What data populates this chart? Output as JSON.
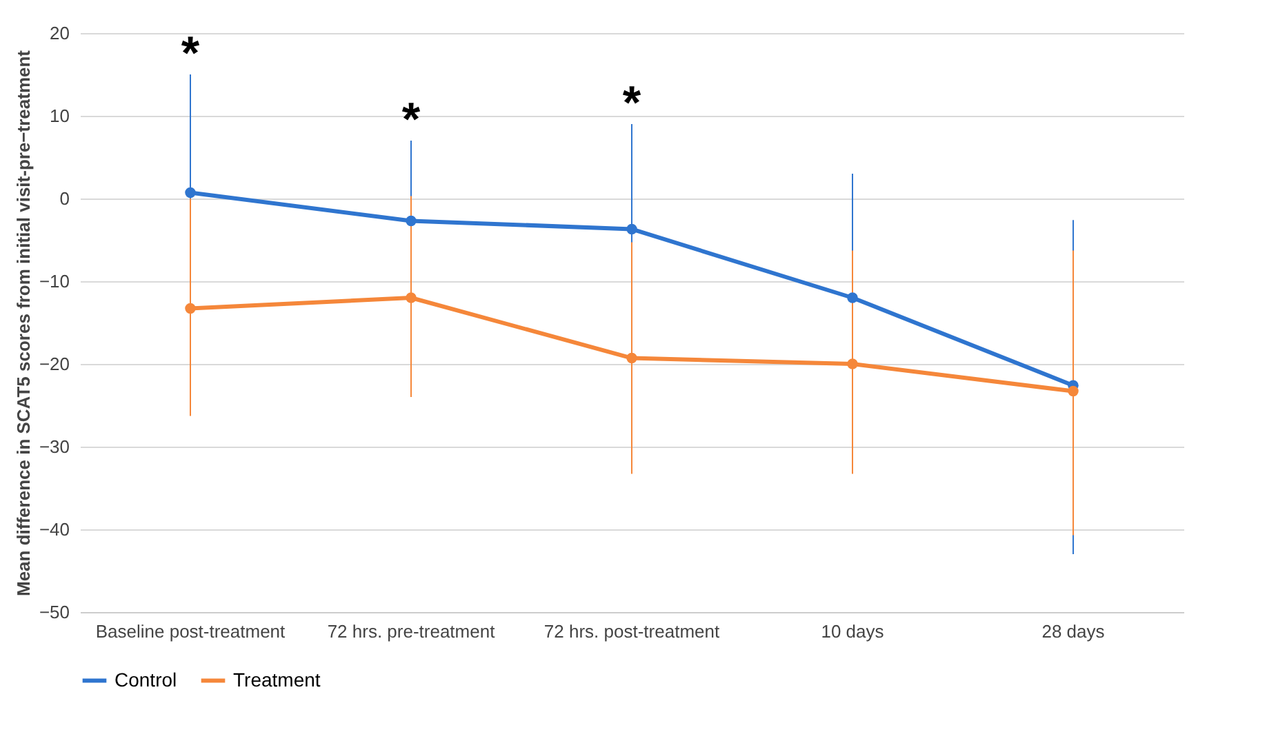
{
  "chart_data": {
    "type": "line",
    "ylabel": "Mean difference in SCAT5 scores from initial visit-pre−treatment",
    "categories": [
      "Baseline post-treatment",
      "72 hrs. pre-treatment",
      "72 hrs. post-treatment",
      "10 days",
      "28 days"
    ],
    "series": [
      {
        "name": "Control",
        "color": "#2f75cf",
        "values": [
          0.7,
          -2.7,
          -3.7,
          -12,
          -22.6
        ],
        "errors": [
          [
            -13.7,
            15
          ],
          [
            -12.4,
            7
          ],
          [
            -16.3,
            9
          ],
          [
            -26.8,
            3
          ],
          [
            -43,
            -2.6
          ]
        ]
      },
      {
        "name": "Treatment",
        "color": "#f5873a",
        "values": [
          -13.3,
          -12,
          -19.3,
          -20,
          -23.3
        ],
        "errors": [
          [
            -26.3,
            0
          ],
          [
            -24,
            0.3
          ],
          [
            -33.3,
            -5.3
          ],
          [
            -33.3,
            -6.3
          ],
          [
            -40.7,
            -6.3
          ]
        ]
      }
    ],
    "annotations": [
      {
        "text": "*",
        "x": "Baseline post-treatment",
        "y": 15
      },
      {
        "text": "*",
        "x": "72 hrs. pre-treatment",
        "y": 7
      },
      {
        "text": "*",
        "x": "72 hrs. post-treatment",
        "y": 9
      }
    ],
    "ylim": [
      -50,
      20
    ],
    "yticks": [
      -50,
      -40,
      -30,
      -20,
      -10,
      0,
      10,
      20
    ],
    "grid": "y",
    "legend": "bottom",
    "marker": "circle",
    "line_style": "solid"
  }
}
